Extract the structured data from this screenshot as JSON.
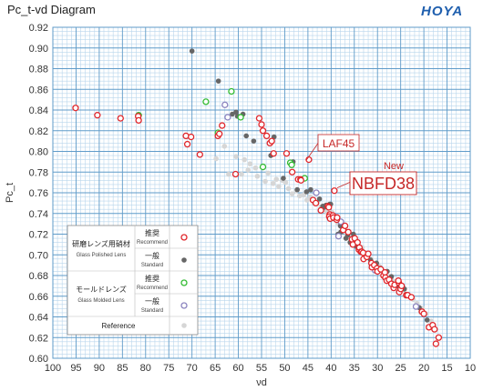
{
  "chart_data": {
    "type": "scatter",
    "title": "Pc_t-vd Diagram",
    "brand": "HOYA",
    "xlabel": "νd",
    "ylabel": "Pc_t",
    "x_reversed": true,
    "xlim": [
      100,
      10
    ],
    "ylim": [
      0.6,
      0.92
    ],
    "x_ticks": [
      "100",
      "95",
      "90",
      "85",
      "80",
      "75",
      "70",
      "65",
      "60",
      "55",
      "50",
      "45",
      "40",
      "35",
      "30",
      "25",
      "20",
      "15",
      "10"
    ],
    "y_ticks": [
      "0.60",
      "0.62",
      "0.64",
      "0.66",
      "0.68",
      "0.70",
      "0.72",
      "0.74",
      "0.76",
      "0.78",
      "0.80",
      "0.82",
      "0.84",
      "0.86",
      "0.88",
      "0.90",
      "0.92"
    ],
    "grid": true,
    "colors": {
      "recommend_polished": "#e0262b",
      "standard_polished": "#666666",
      "recommend_molded": "#33bb33",
      "standard_molded": "#8b84bf",
      "reference": "#d6d6d6",
      "grid_major": "#5f9bc9",
      "grid_minor": "#b9d6ec",
      "brand": "#1f5fae"
    },
    "legend": {
      "placement": "bottom-left",
      "groups": [
        {
          "group_label": "研磨レンズ用硝材",
          "group_sub": "Glass Polished Lens",
          "rows": [
            {
              "label": "推奨",
              "sub": "Recommend",
              "series": "recommend_polished"
            },
            {
              "label": "一般",
              "sub": "Standard",
              "series": "standard_polished"
            }
          ]
        },
        {
          "group_label": "モールドレンズ",
          "group_sub": "Glass Molded Lens",
          "rows": [
            {
              "label": "推奨",
              "sub": "Recommend",
              "series": "recommend_molded"
            },
            {
              "label": "一般",
              "sub": "Standard",
              "series": "standard_molded"
            }
          ]
        }
      ],
      "reference_label": "Reference"
    },
    "annotations": [
      {
        "text": "LAF45",
        "x": 45.7,
        "y": 0.79
      },
      {
        "text": "New",
        "x": 39.3,
        "y": 0.763
      },
      {
        "text": "NBFD38",
        "x": 39.3,
        "y": 0.763
      }
    ],
    "series": [
      {
        "key": "recommend_polished",
        "style": "ring",
        "x": [
          95.1,
          90.4,
          85.4,
          81.6,
          81.5,
          71.3,
          71.0,
          70.2,
          68.3,
          64.4,
          64.1,
          63.5,
          60.6,
          55.5,
          55.0,
          54.7,
          53.9,
          53.2,
          52.8,
          52.4,
          49.6,
          48.4,
          47.1,
          46.6,
          46.5,
          44.8,
          43.9,
          43.3,
          42.2,
          40.7,
          40.5,
          40.3,
          40.4,
          40.2,
          39.6,
          39.5,
          39.3,
          38.8,
          38.7,
          37.4,
          37.0,
          36.3,
          35.5,
          35.3,
          34.9,
          34.3,
          34.0,
          33.9,
          33.6,
          33.4,
          33.1,
          33.0,
          32.3,
          32.0,
          31.3,
          31.2,
          30.7,
          30.1,
          30.0,
          29.3,
          28.7,
          28.4,
          28.3,
          28.0,
          27.5,
          27.0,
          26.5,
          26.3,
          25.4,
          25.3,
          25.0,
          25.5,
          24.8,
          23.8,
          23.5,
          22.7,
          20.4,
          20.0,
          18.9,
          18.1,
          17.7,
          17.4,
          16.8
        ],
        "y": [
          0.842,
          0.835,
          0.832,
          0.834,
          0.83,
          0.815,
          0.807,
          0.814,
          0.797,
          0.815,
          0.817,
          0.825,
          0.778,
          0.832,
          0.826,
          0.82,
          0.815,
          0.808,
          0.81,
          0.798,
          0.798,
          0.78,
          0.773,
          0.773,
          0.772,
          0.792,
          0.753,
          0.75,
          0.743,
          0.747,
          0.746,
          0.739,
          0.737,
          0.735,
          0.738,
          0.736,
          0.762,
          0.734,
          0.736,
          0.724,
          0.728,
          0.722,
          0.715,
          0.71,
          0.716,
          0.712,
          0.705,
          0.707,
          0.703,
          0.703,
          0.702,
          0.696,
          0.698,
          0.701,
          0.692,
          0.688,
          0.69,
          0.687,
          0.684,
          0.686,
          0.68,
          0.683,
          0.678,
          0.675,
          0.676,
          0.672,
          0.668,
          0.671,
          0.673,
          0.664,
          0.667,
          0.675,
          0.67,
          0.661,
          0.661,
          0.659,
          0.645,
          0.643,
          0.63,
          0.632,
          0.628,
          0.614,
          0.62
        ]
      },
      {
        "key": "standard_polished",
        "style": "dot",
        "x": [
          70.0,
          64.3,
          61.3,
          60.5,
          60.2,
          59.0,
          58.3,
          56.7,
          53.0,
          52.3,
          50.3,
          48.2,
          47.3,
          46.6,
          45.3,
          44.4,
          42.5,
          41.8,
          41.5,
          41.1,
          40.8,
          40.4,
          40.3,
          40.1,
          38.5,
          38.0,
          37.9,
          37.3,
          36.8,
          36.4,
          35.9,
          35.2,
          34.5,
          33.7,
          32.5,
          31.5,
          30.2,
          29.3,
          27.9,
          27.0,
          25.5,
          24.2,
          23.0,
          21.0,
          20.6,
          19.3,
          18.6
        ],
        "y": [
          0.897,
          0.868,
          0.836,
          0.838,
          0.834,
          0.836,
          0.815,
          0.81,
          0.796,
          0.814,
          0.774,
          0.79,
          0.763,
          0.773,
          0.761,
          0.763,
          0.754,
          0.747,
          0.746,
          0.748,
          0.747,
          0.746,
          0.749,
          0.749,
          0.72,
          0.728,
          0.722,
          0.724,
          0.716,
          0.719,
          0.712,
          0.72,
          0.708,
          0.706,
          0.7,
          0.695,
          0.692,
          0.687,
          0.684,
          0.679,
          0.67,
          0.667,
          0.66,
          0.649,
          0.645,
          0.637,
          0.63
        ]
      },
      {
        "key": "recommend_molded",
        "style": "ring",
        "x": [
          81.5,
          67.0,
          64.4,
          61.5,
          59.5,
          54.7,
          48.8,
          48.5,
          45.7
        ],
        "y": [
          0.835,
          0.848,
          0.818,
          0.858,
          0.833,
          0.785,
          0.789,
          0.787,
          0.774
        ]
      },
      {
        "key": "standard_molded",
        "style": "ring",
        "x": [
          62.9,
          62.3,
          43.2,
          39.6,
          37.9,
          38.4,
          30.5,
          21.7
        ],
        "y": [
          0.845,
          0.833,
          0.76,
          0.737,
          0.732,
          0.718,
          0.685,
          0.65
        ]
      },
      {
        "key": "reference",
        "style": "dot",
        "x": [
          64.8,
          63.0,
          62.1,
          60.5,
          59.3,
          58.7,
          57.9,
          57.5,
          56.3,
          55.9,
          54.7,
          54.2,
          53.6,
          52.5,
          51.8,
          51.3,
          50.5,
          49.8,
          49.2,
          48.4,
          47.5,
          46.8,
          45.9,
          45.2,
          44.5,
          43.7,
          42.9,
          42.2,
          41.3,
          40.9,
          39.8,
          39.4,
          38.6,
          37.8,
          37.2,
          36.6,
          35.5,
          34.8,
          33.3,
          32.2,
          31.4,
          30.6,
          29.6,
          29.0,
          28.3,
          27.6,
          26.8,
          25.9,
          25.2,
          24.3,
          23.3,
          22.3,
          21.5,
          20.3,
          19.5,
          18.4
        ],
        "y": [
          0.793,
          0.805,
          0.778,
          0.795,
          0.778,
          0.792,
          0.782,
          0.788,
          0.784,
          0.776,
          0.784,
          0.771,
          0.779,
          0.769,
          0.773,
          0.766,
          0.772,
          0.77,
          0.764,
          0.759,
          0.762,
          0.757,
          0.758,
          0.753,
          0.756,
          0.75,
          0.751,
          0.746,
          0.744,
          0.741,
          0.741,
          0.737,
          0.731,
          0.727,
          0.725,
          0.719,
          0.716,
          0.713,
          0.707,
          0.7,
          0.696,
          0.691,
          0.689,
          0.685,
          0.681,
          0.679,
          0.675,
          0.672,
          0.668,
          0.666,
          0.661,
          0.657,
          0.653,
          0.648,
          0.643,
          0.636
        ]
      }
    ]
  }
}
